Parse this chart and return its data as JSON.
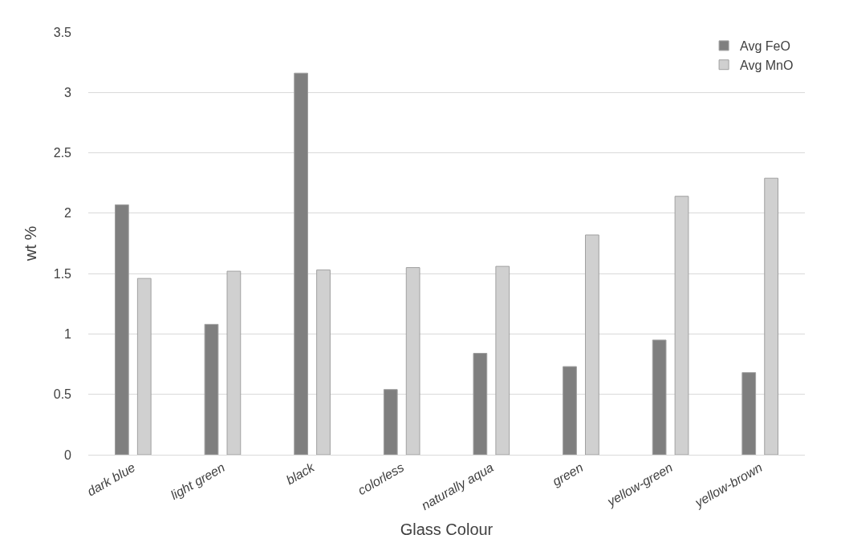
{
  "chart_data": {
    "type": "bar",
    "xlabel": "Glass Colour",
    "ylabel": "wt %",
    "categories": [
      "dark blue",
      "light green",
      "black",
      "colorless",
      "naturally aqua",
      "green",
      "yellow-green",
      "yellow-brown"
    ],
    "series": [
      {
        "name": "Avg FeO",
        "color": "#7f7f7f",
        "values": [
          2.07,
          1.08,
          3.16,
          0.54,
          0.84,
          0.73,
          0.95,
          0.68
        ]
      },
      {
        "name": "Avg MnO",
        "color": "#d0d0d0",
        "values": [
          1.46,
          1.52,
          1.53,
          1.55,
          1.56,
          1.82,
          2.14,
          2.29
        ]
      }
    ],
    "ylim": [
      0,
      3.5
    ],
    "yticks": [
      0,
      0.5,
      1,
      1.5,
      2,
      2.5,
      3,
      3.5
    ],
    "grid": "y",
    "legend": "top right"
  }
}
